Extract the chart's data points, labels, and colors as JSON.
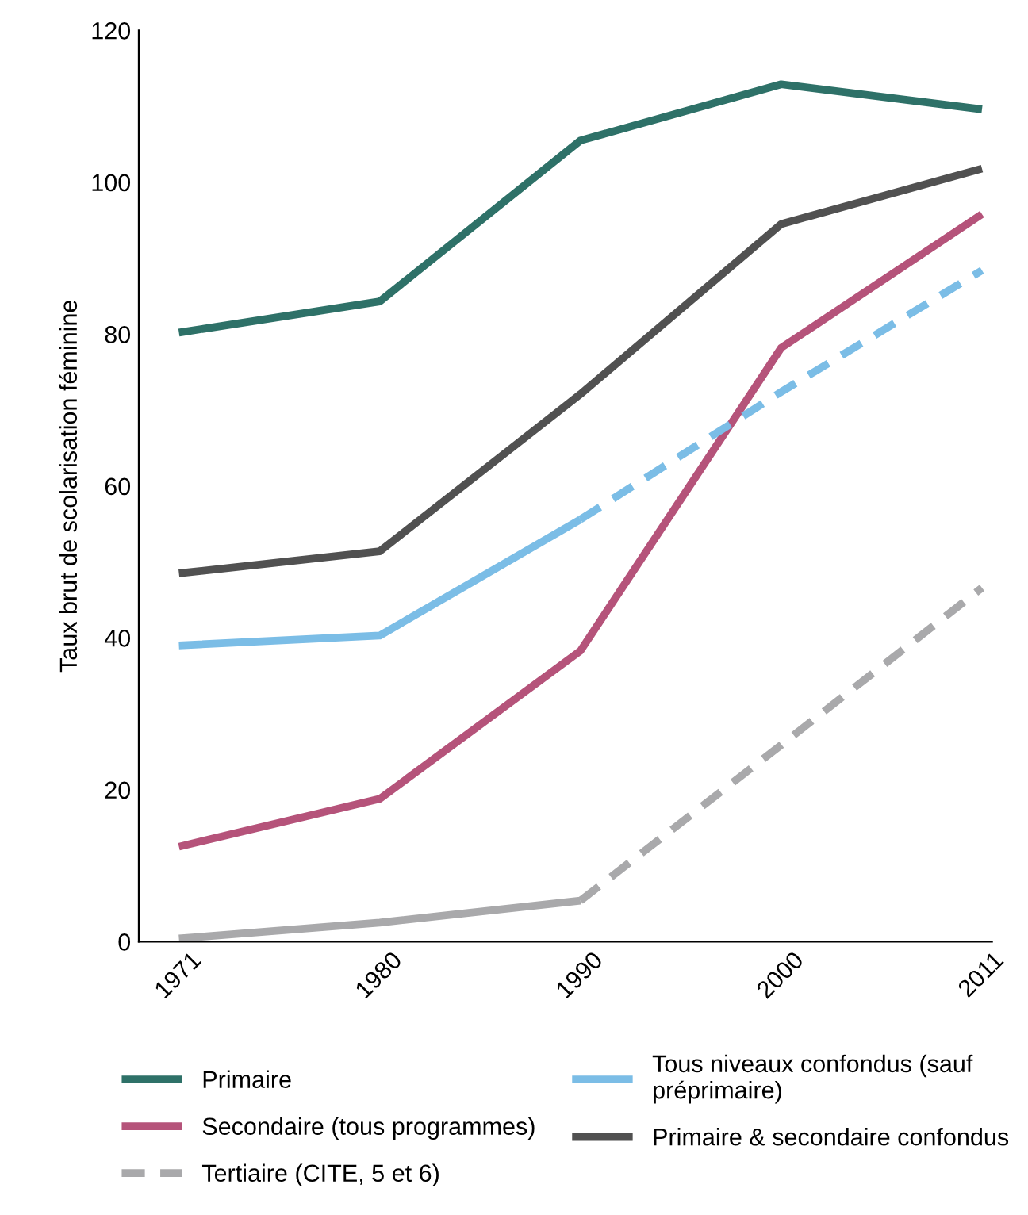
{
  "chart_data": {
    "type": "line",
    "ylabel": "Taux brut de scolarisation féminine",
    "categories": [
      "1971",
      "1980",
      "1990",
      "2000",
      "2011"
    ],
    "series": [
      {
        "name": "Primaire",
        "color": "#2e7168",
        "line_style": "solid",
        "values": [
          80.2,
          84.3,
          105.5,
          112.9,
          109.6
        ]
      },
      {
        "name": "Secondaire (tous programmes)",
        "color": "#b5537a",
        "line_style": "solid",
        "values": [
          12.5,
          18.8,
          38.3,
          78.2,
          95.8
        ]
      },
      {
        "color": "#a9a9ab",
        "line_style": "solid",
        "values": [
          0.4,
          2.5,
          5.4,
          null,
          null
        ]
      },
      {
        "name": "Tertiaire (CITE, 5 et 6)",
        "color": "#a9a9ab",
        "line_style": "dashed",
        "values": [
          null,
          null,
          5.4,
          25.9,
          46.6
        ]
      },
      {
        "name": "Tous niveaux confondus (sauf\npréprimaire)",
        "color": "#7bbde6",
        "line_style": "solid",
        "values": [
          39.0,
          40.3,
          55.6,
          null,
          null
        ]
      },
      {
        "color": "#7bbde6",
        "line_style": "dashed",
        "values": [
          null,
          null,
          55.6,
          72.4,
          88.4
        ]
      },
      {
        "name": "Primaire & secondaire confondus",
        "color": "#515151",
        "line_style": "solid",
        "values": [
          48.5,
          51.4,
          72.1,
          94.5,
          101.8
        ]
      }
    ],
    "ylim": [
      0,
      120
    ],
    "yticks": [
      0,
      20,
      40,
      60,
      80,
      100,
      120
    ],
    "grid": false,
    "legend": "bottom",
    "marker": "none"
  }
}
